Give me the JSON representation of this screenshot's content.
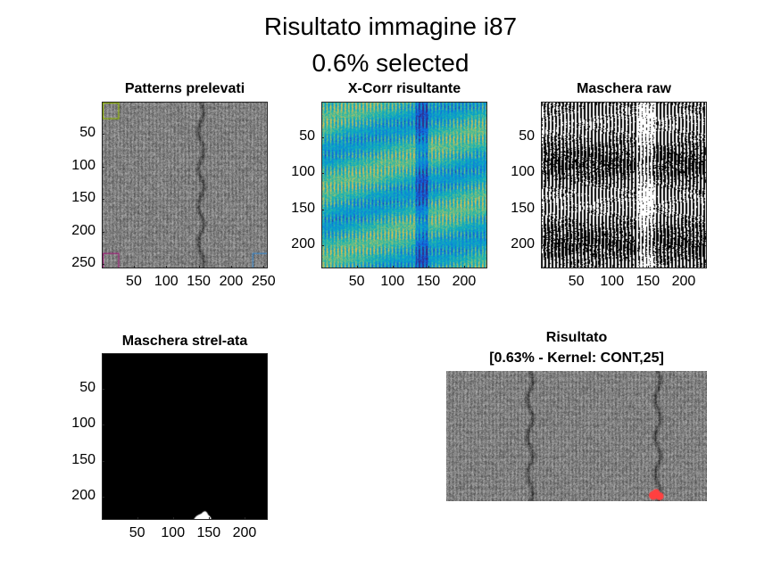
{
  "figure": {
    "title_line1": "Risultato immagine i87",
    "title_line2": "0.6% selected"
  },
  "chart_data": [
    {
      "type": "heatmap",
      "title": "Patterns prelevati",
      "colormap": "gray",
      "xticks": [
        50,
        100,
        150,
        200,
        250
      ],
      "yticks": [
        50,
        100,
        150,
        200,
        250
      ],
      "xlim": [
        1,
        256
      ],
      "ylim": [
        1,
        256
      ],
      "pattern_boxes": [
        {
          "x": [
            1,
            25
          ],
          "y": [
            1,
            25
          ],
          "color": "#8ab000"
        },
        {
          "x": [
            1,
            25
          ],
          "y": [
            232,
            256
          ],
          "color": "#9b1c74"
        },
        {
          "x": [
            232,
            256
          ],
          "y": [
            232,
            256
          ],
          "color": "#3c87c8"
        }
      ]
    },
    {
      "type": "heatmap",
      "title": "X-Corr risultante",
      "colormap": "parula",
      "xticks": [
        50,
        100,
        150,
        200
      ],
      "yticks": [
        50,
        100,
        150,
        200
      ],
      "xlim": [
        1,
        232
      ],
      "ylim": [
        1,
        232
      ]
    },
    {
      "type": "heatmap",
      "title": "Maschera raw",
      "colormap": "binary",
      "xticks": [
        50,
        100,
        150,
        200
      ],
      "yticks": [
        50,
        100,
        150,
        200
      ],
      "xlim": [
        1,
        232
      ],
      "ylim": [
        1,
        232
      ]
    },
    {
      "type": "heatmap",
      "title": "Maschera strel-ata",
      "colormap": "binary",
      "xticks": [
        50,
        100,
        150,
        200
      ],
      "yticks": [
        50,
        100,
        150,
        200
      ],
      "xlim": [
        1,
        232
      ],
      "ylim": [
        1,
        232
      ],
      "blob": {
        "x": [
          128,
          152
        ],
        "y": [
          218,
          232
        ]
      }
    },
    {
      "type": "heatmap",
      "title_line1": "Risultato",
      "title_line2": "[0.63% - Kernel: CONT,25]",
      "colormap": "gray",
      "axis": "off",
      "highlight_color": "#ff4040"
    }
  ],
  "colors": {
    "axes_edge": "#262626",
    "background": "#ffffff",
    "highlight": "#ff4040"
  }
}
